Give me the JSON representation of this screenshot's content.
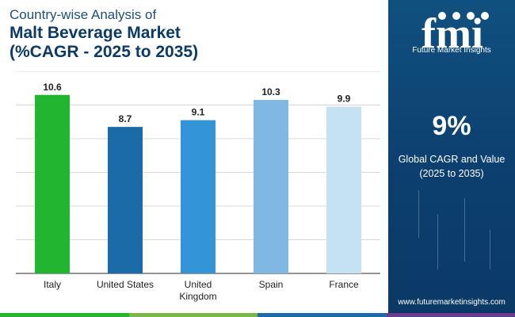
{
  "header": {
    "line1": "Country-wise Analysis of",
    "line2": "Malt Beverage Market",
    "line3": "(%CAGR - 2025 to 2035)"
  },
  "chart_data": {
    "type": "bar",
    "title": "Malt Beverage Market",
    "categories": [
      [
        "Italy"
      ],
      [
        "United States"
      ],
      [
        "United",
        "Kingdom"
      ],
      [
        "Spain"
      ],
      [
        "France"
      ]
    ],
    "values": [
      10.6,
      8.7,
      9.1,
      10.3,
      9.9
    ],
    "value_labels": [
      "10.6",
      "8.7",
      "9.1",
      "10.3",
      "9.9"
    ],
    "colors": [
      "#22b530",
      "#1a6ba7",
      "#3394d6",
      "#7fb8e3",
      "#c5e2f3"
    ],
    "ylim": [
      0,
      12
    ],
    "grid": true,
    "xlabel": "",
    "ylabel": ""
  },
  "panel": {
    "logo_text": "fmi",
    "brand": "Future Market Insights",
    "big_value": "9%",
    "label_line1": "Global CAGR and Value",
    "label_line2": "(2025 to 2035)",
    "website": "www.futuremarketinsights.com"
  },
  "colors": {
    "title": "#0b3a66",
    "panel": "#0d4679",
    "bar_strip": [
      "#22b530",
      "#7ab648",
      "#1a6ba7",
      "#6a3d8f"
    ]
  }
}
